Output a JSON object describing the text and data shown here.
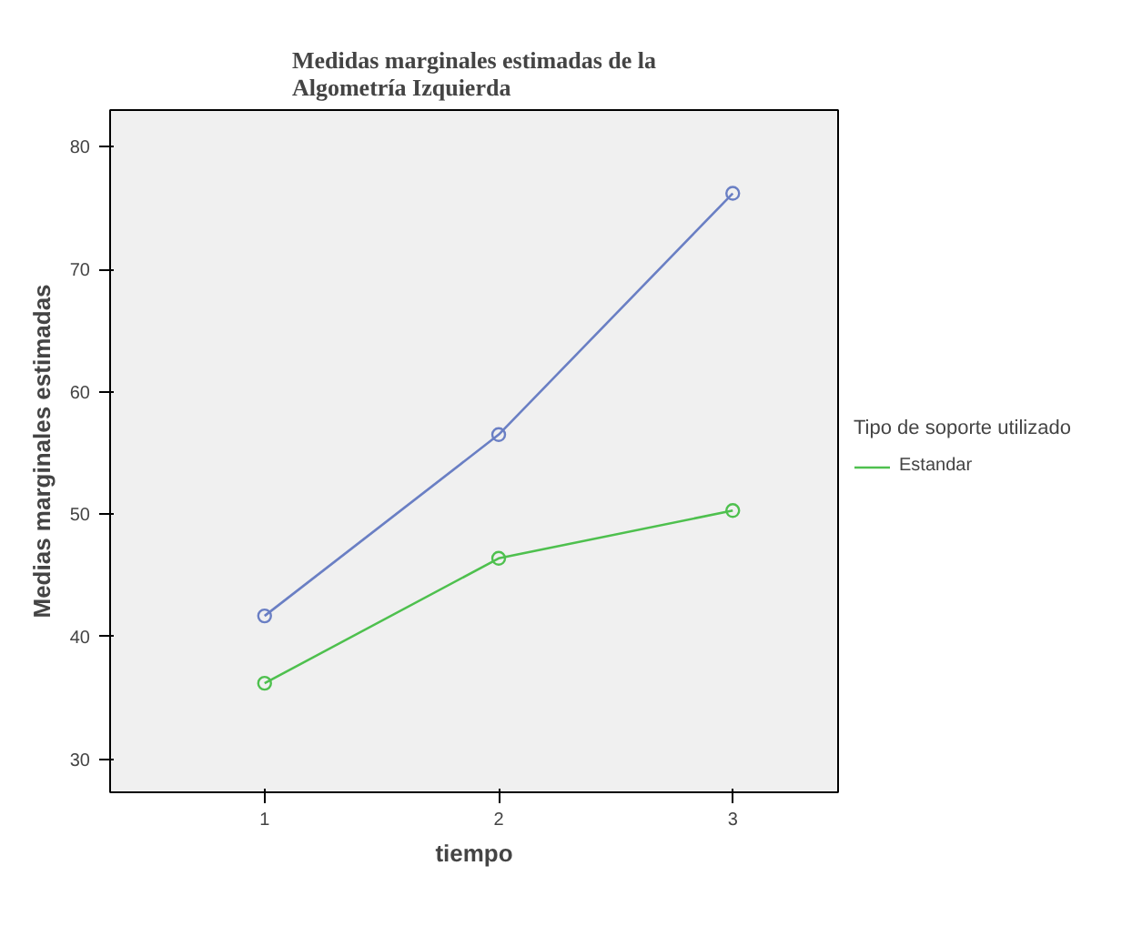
{
  "chart_data": {
    "type": "line",
    "title": "Medidas marginales estimadas de la\nAlgometría Izquierda",
    "xlabel": "tiempo",
    "ylabel": "Medias marginales estimadas",
    "legend_title": "Tipo de soporte utilizado",
    "x": [
      1,
      2,
      3
    ],
    "xlim": [
      0.34,
      3.45
    ],
    "xticks": [
      1,
      2,
      3
    ],
    "ylim": [
      27.3,
      83
    ],
    "yticks": [
      30,
      40,
      50,
      60,
      70,
      80
    ],
    "grid": false,
    "legend": "right",
    "marker": "circle",
    "line_style": "solid",
    "series": [
      {
        "color": "#6a7fc4",
        "values": [
          41.7,
          56.5,
          76.2
        ]
      },
      {
        "name": "Estandar",
        "color": "#4ec04e",
        "values": [
          36.2,
          46.4,
          50.3
        ]
      }
    ]
  }
}
